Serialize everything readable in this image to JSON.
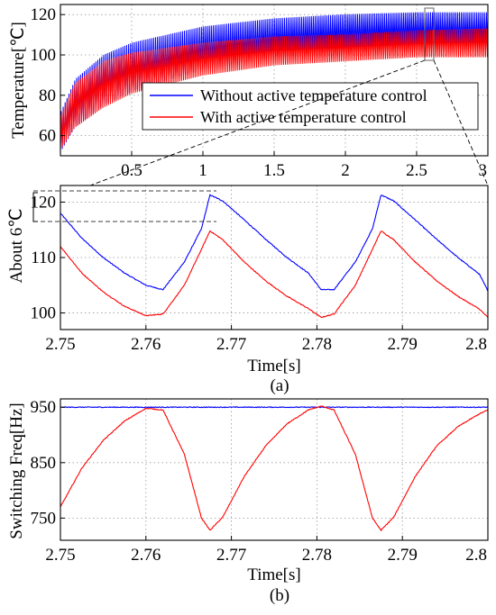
{
  "chart_data": [
    {
      "type": "line",
      "panel": "top",
      "ylabel": "Temperature[℃]",
      "xlim": [
        0,
        3
      ],
      "ylim": [
        50,
        125
      ],
      "xticks": [
        "0.5",
        "1",
        "1.5",
        "2",
        "2.5",
        "3"
      ],
      "yticks": [
        "60",
        "80",
        "100",
        "120"
      ],
      "legend": "center-right",
      "grid": true,
      "series": [
        {
          "name": "Without active temperature control",
          "color": "#0000ff",
          "envelope_x": [
            0,
            0.1,
            0.3,
            0.5,
            1.0,
            1.5,
            2.0,
            2.5,
            3.0
          ],
          "upper": [
            72,
            88,
            100,
            106,
            114,
            118,
            120,
            121,
            121
          ],
          "lower": [
            52,
            64,
            75,
            82,
            93,
            99,
            102,
            104,
            104
          ]
        },
        {
          "name": "With active temperature control",
          "color": "#ff0000",
          "envelope_x": [
            0,
            0.1,
            0.3,
            0.5,
            1.0,
            1.5,
            2.0,
            2.5,
            3.0
          ],
          "upper": [
            70,
            86,
            97,
            101,
            106,
            109,
            110,
            112,
            113
          ],
          "lower": [
            53,
            64,
            74,
            81,
            90,
            95,
            97,
            99,
            99
          ]
        }
      ]
    },
    {
      "type": "line",
      "panel": "middle",
      "ylabel": "About 6℃",
      "xlabel": "Time[s]",
      "xlim": [
        2.75,
        2.8
      ],
      "ylim": [
        97,
        123
      ],
      "xticks": [
        "2.75",
        "2.76",
        "2.77",
        "2.78",
        "2.79",
        "2.8"
      ],
      "yticks": [
        "100",
        "110",
        "120"
      ],
      "grid": true,
      "caption": "(a)",
      "series": [
        {
          "name": "Without active temperature control",
          "color": "#0000ff",
          "x": [
            2.75,
            2.7525,
            2.755,
            2.7575,
            2.76,
            2.762,
            2.7645,
            2.7665,
            2.7675,
            2.769,
            2.7715,
            2.774,
            2.7765,
            2.779,
            2.7805,
            2.782,
            2.7845,
            2.7865,
            2.7875,
            2.789,
            2.7915,
            2.794,
            2.7965,
            2.799,
            2.8
          ],
          "y": [
            118,
            113.5,
            110,
            107.2,
            105,
            104.2,
            109.2,
            115.2,
            121.3,
            120.2,
            116.8,
            113.3,
            110,
            107.2,
            104.2,
            104.2,
            109.2,
            115.2,
            121.3,
            120.2,
            116.8,
            113.3,
            110,
            107,
            104
          ]
        },
        {
          "name": "With active temperature control",
          "color": "#ff0000",
          "x": [
            2.75,
            2.7525,
            2.755,
            2.7575,
            2.76,
            2.762,
            2.7645,
            2.7665,
            2.7675,
            2.769,
            2.7715,
            2.774,
            2.7765,
            2.779,
            2.7805,
            2.782,
            2.7845,
            2.7865,
            2.7875,
            2.789,
            2.7915,
            2.794,
            2.7965,
            2.799,
            2.8
          ],
          "y": [
            112,
            107.2,
            103.8,
            101.2,
            99.5,
            99.8,
            105,
            111.5,
            114.8,
            113.2,
            109.2,
            105.8,
            103,
            100.8,
            99.2,
            99.8,
            105,
            111.5,
            114.8,
            113.2,
            109.2,
            105.8,
            103,
            100.7,
            99.2
          ]
        }
      ]
    },
    {
      "type": "line",
      "panel": "bottom",
      "ylabel": "Switching Freq[Hz]",
      "xlabel": "Time[s]",
      "xlim": [
        2.75,
        2.8
      ],
      "ylim": [
        710,
        965
      ],
      "xticks": [
        "2.75",
        "2.76",
        "2.77",
        "2.78",
        "2.79",
        "2.8"
      ],
      "yticks": [
        "750",
        "850",
        "950"
      ],
      "grid": true,
      "caption": "(b)",
      "series": [
        {
          "name": "Without active temperature control",
          "color": "#0000ff",
          "x": [
            2.75,
            2.8
          ],
          "y": [
            950,
            950
          ]
        },
        {
          "name": "With active temperature control",
          "color": "#ff0000",
          "x": [
            2.75,
            2.7525,
            2.755,
            2.7575,
            2.76,
            2.762,
            2.7645,
            2.7665,
            2.7675,
            2.769,
            2.7715,
            2.774,
            2.7765,
            2.779,
            2.7805,
            2.782,
            2.7845,
            2.7865,
            2.7875,
            2.789,
            2.7915,
            2.794,
            2.7965,
            2.799,
            2.8
          ],
          "y": [
            770,
            840,
            890,
            925,
            948,
            945,
            865,
            750,
            728,
            752,
            825,
            880,
            920,
            945,
            952,
            945,
            865,
            750,
            728,
            752,
            825,
            880,
            915,
            938,
            945
          ]
        }
      ]
    }
  ]
}
